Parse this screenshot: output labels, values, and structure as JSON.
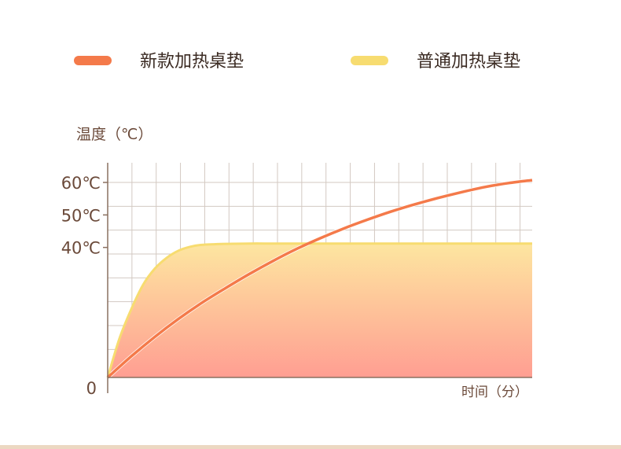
{
  "colors": {
    "new_series": "#f47a4a",
    "normal_series": "#f7dc70",
    "grid": "#d3c9c2",
    "axis": "#8a7060",
    "fill_top": "#fde6a0",
    "fill_bottom": "#ff9e92",
    "bottom_bar": "#ecd8c2"
  },
  "chart_data": {
    "type": "line",
    "ylabel": "温度（℃）",
    "xlabel": "时间（分）",
    "yticks": [
      {
        "value": 0,
        "label": "0"
      },
      {
        "value": 40,
        "label": "40℃"
      },
      {
        "value": 50,
        "label": "50℃"
      },
      {
        "value": 60,
        "label": "60℃"
      }
    ],
    "ylim": [
      0,
      65
    ],
    "xlim": [
      0,
      18
    ],
    "grid": true,
    "legend_position": "top",
    "series": [
      {
        "name": "新款加热桌垫",
        "color": "#f47a4a",
        "x": [
          0,
          1,
          2,
          3,
          4,
          5,
          6,
          7,
          8,
          9,
          10,
          11,
          12,
          13,
          14,
          15,
          16,
          17,
          18
        ],
        "y": [
          0,
          6.5,
          12.5,
          18,
          23,
          27.5,
          31.8,
          35.8,
          39.5,
          42.8,
          45.8,
          48.5,
          51,
          53.2,
          55.2,
          57,
          58.6,
          59.8,
          60.7
        ]
      },
      {
        "name": "普通加热桌垫",
        "color": "#f7dc70",
        "x": [
          0,
          0.5,
          1,
          1.5,
          2,
          2.5,
          3,
          3.5,
          4,
          5,
          6,
          7,
          8,
          9,
          10,
          11,
          12,
          13,
          14,
          15,
          16,
          17,
          18
        ],
        "y": [
          0,
          12,
          21,
          28.5,
          33.5,
          36.8,
          39,
          40.2,
          40.8,
          41.1,
          41.2,
          41.2,
          41.2,
          41.2,
          41.2,
          41.2,
          41.2,
          41.2,
          41.2,
          41.2,
          41.2,
          41.2,
          41.2
        ]
      }
    ]
  }
}
